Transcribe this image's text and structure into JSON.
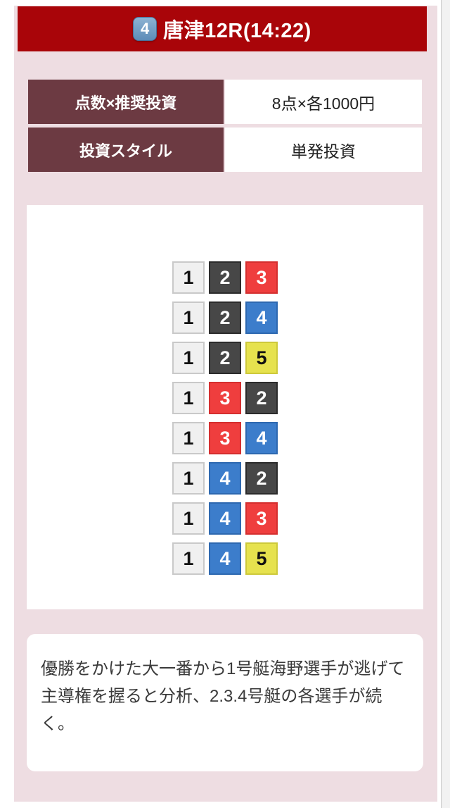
{
  "header": {
    "race_badge": "4",
    "title": "唐津12R(14:22)"
  },
  "info_table": {
    "rows": [
      {
        "label": "点数×推奨投資",
        "value": "8点×各1000円"
      },
      {
        "label": "投資スタイル",
        "value": "単発投資"
      }
    ]
  },
  "bets": {
    "combinations": [
      [
        1,
        2,
        3
      ],
      [
        1,
        2,
        4
      ],
      [
        1,
        2,
        5
      ],
      [
        1,
        3,
        2
      ],
      [
        1,
        3,
        4
      ],
      [
        1,
        4,
        2
      ],
      [
        1,
        4,
        3
      ],
      [
        1,
        4,
        5
      ]
    ]
  },
  "analysis": {
    "text": "優勝をかけた大一番から1号艇海野選手が逃げて主導権を握ると分析、2.3.4号艇の各選手が続く。"
  },
  "colors": {
    "page_bg": "#ffffff",
    "pink_bg": "#eedde2",
    "header_bg": "#a90509",
    "maroon_bg": "#6c3a42",
    "badge_top": "#8db3d3",
    "badge_bottom": "#5d8cb8",
    "boats": {
      "1": {
        "bg": "#f0f0f0",
        "border": "#c9c9c9",
        "text": "#111111"
      },
      "2": {
        "bg": "#474747",
        "border": "#2b2b2b",
        "text": "#ffffff"
      },
      "3": {
        "bg": "#ef3e3e",
        "border": "#d52f2f",
        "text": "#ffffff"
      },
      "4": {
        "bg": "#3c7dcb",
        "border": "#2d68b0",
        "text": "#ffffff"
      },
      "5": {
        "bg": "#e6e24e",
        "border": "#cdc93b",
        "text": "#111111"
      }
    }
  }
}
